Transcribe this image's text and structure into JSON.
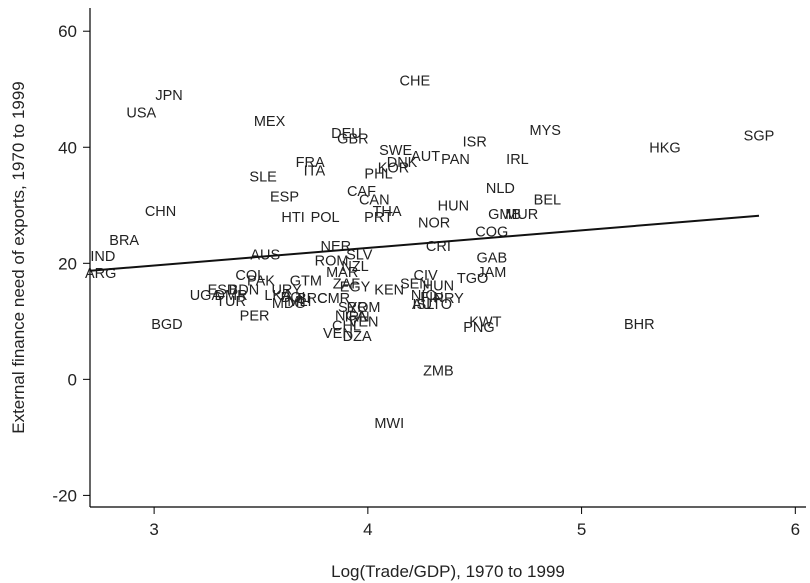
{
  "chart_data": {
    "type": "scatter",
    "title": "",
    "xlabel": "Log(Trade/GDP), 1970 to 1999",
    "ylabel": "External finance need of exports, 1970 to 1999",
    "xlim": [
      2.7,
      6.05
    ],
    "ylim": [
      -22,
      64
    ],
    "xticks": [
      3,
      4,
      5,
      6
    ],
    "yticks": [
      -20,
      0,
      20,
      40,
      60
    ],
    "grid": false,
    "marker": "country-code-label",
    "points": [
      {
        "label": "CHE",
        "x": 4.22,
        "y": 51.5
      },
      {
        "label": "JPN",
        "x": 3.07,
        "y": 49
      },
      {
        "label": "USA",
        "x": 2.94,
        "y": 46
      },
      {
        "label": "MEX",
        "x": 3.54,
        "y": 44.5
      },
      {
        "label": "MYS",
        "x": 4.83,
        "y": 43
      },
      {
        "label": "SGP",
        "x": 5.83,
        "y": 42
      },
      {
        "label": "DEU",
        "x": 3.9,
        "y": 42.5
      },
      {
        "label": "GBR",
        "x": 3.93,
        "y": 41.5
      },
      {
        "label": "ISR",
        "x": 4.5,
        "y": 41
      },
      {
        "label": "HKG",
        "x": 5.39,
        "y": 40
      },
      {
        "label": "SWE",
        "x": 4.13,
        "y": 39.5
      },
      {
        "label": "AUT",
        "x": 4.27,
        "y": 38.5
      },
      {
        "label": "PAN",
        "x": 4.41,
        "y": 38
      },
      {
        "label": "IRL",
        "x": 4.7,
        "y": 38
      },
      {
        "label": "DNK",
        "x": 4.16,
        "y": 37.5
      },
      {
        "label": "FRA",
        "x": 3.73,
        "y": 37.5
      },
      {
        "label": "KOR",
        "x": 4.12,
        "y": 36.5
      },
      {
        "label": "ITA",
        "x": 3.75,
        "y": 36
      },
      {
        "label": "PHL",
        "x": 4.05,
        "y": 35.5
      },
      {
        "label": "SLE",
        "x": 3.51,
        "y": 35
      },
      {
        "label": "NLD",
        "x": 4.62,
        "y": 33
      },
      {
        "label": "CAF",
        "x": 3.97,
        "y": 32.5
      },
      {
        "label": "ESP",
        "x": 3.61,
        "y": 31.5
      },
      {
        "label": "CAN",
        "x": 4.03,
        "y": 31
      },
      {
        "label": "BEL",
        "x": 4.84,
        "y": 31
      },
      {
        "label": "HUN",
        "x": 4.4,
        "y": 30
      },
      {
        "label": "THA",
        "x": 4.09,
        "y": 29
      },
      {
        "label": "CHN",
        "x": 3.03,
        "y": 29
      },
      {
        "label": "GMB",
        "x": 4.64,
        "y": 28.5
      },
      {
        "label": "MUR",
        "x": 4.72,
        "y": 28.5
      },
      {
        "label": "HTI",
        "x": 3.65,
        "y": 28
      },
      {
        "label": "POL",
        "x": 3.8,
        "y": 28
      },
      {
        "label": "PRT",
        "x": 4.05,
        "y": 28
      },
      {
        "label": "NOR",
        "x": 4.31,
        "y": 27
      },
      {
        "label": "COG",
        "x": 4.58,
        "y": 25.5
      },
      {
        "label": "BRA",
        "x": 2.86,
        "y": 24
      },
      {
        "label": "CRI",
        "x": 4.33,
        "y": 23
      },
      {
        "label": "NER",
        "x": 3.85,
        "y": 23
      },
      {
        "label": "AUS",
        "x": 3.52,
        "y": 21.5
      },
      {
        "label": "IND",
        "x": 2.76,
        "y": 21.3
      },
      {
        "label": "SLV",
        "x": 3.96,
        "y": 21.5
      },
      {
        "label": "GAB",
        "x": 4.58,
        "y": 21
      },
      {
        "label": "ROM",
        "x": 3.83,
        "y": 20.5
      },
      {
        "label": "NZL",
        "x": 3.94,
        "y": 19.5
      },
      {
        "label": "MAR",
        "x": 3.88,
        "y": 18.5
      },
      {
        "label": "JAM",
        "x": 4.58,
        "y": 18.5
      },
      {
        "label": "ARG",
        "x": 2.75,
        "y": 18.3
      },
      {
        "label": "CIV",
        "x": 4.27,
        "y": 18
      },
      {
        "label": "COL",
        "x": 3.45,
        "y": 18
      },
      {
        "label": "TGO",
        "x": 4.49,
        "y": 17.5
      },
      {
        "label": "GTM",
        "x": 3.71,
        "y": 17
      },
      {
        "label": "PAK",
        "x": 3.5,
        "y": 17
      },
      {
        "label": "SEN",
        "x": 4.22,
        "y": 16.5
      },
      {
        "label": "HUN",
        "x": 4.33,
        "y": 16.2
      },
      {
        "label": "ZAF",
        "x": 3.9,
        "y": 16.5
      },
      {
        "label": "EGY",
        "x": 3.94,
        "y": 16
      },
      {
        "label": "KEN",
        "x": 4.1,
        "y": 15.5
      },
      {
        "label": "ESD",
        "x": 3.32,
        "y": 15.5
      },
      {
        "label": "BDN",
        "x": 3.42,
        "y": 15.5
      },
      {
        "label": "URY",
        "x": 3.62,
        "y": 15.5
      },
      {
        "label": "NIC",
        "x": 4.26,
        "y": 14.5
      },
      {
        "label": "UGA",
        "x": 3.24,
        "y": 14.5
      },
      {
        "label": "DMR",
        "x": 3.36,
        "y": 14.5
      },
      {
        "label": "LKA",
        "x": 3.58,
        "y": 14.5
      },
      {
        "label": "BOL",
        "x": 3.66,
        "y": 14.2
      },
      {
        "label": "BRC",
        "x": 3.74,
        "y": 14
      },
      {
        "label": "CMR",
        "x": 3.84,
        "y": 14
      },
      {
        "label": "FIN",
        "x": 4.3,
        "y": 14.2
      },
      {
        "label": "PRY",
        "x": 4.38,
        "y": 14
      },
      {
        "label": "TUR",
        "x": 3.36,
        "y": 13.5
      },
      {
        "label": "MLI",
        "x": 3.68,
        "y": 13.5
      },
      {
        "label": "MDG",
        "x": 3.63,
        "y": 13.2
      },
      {
        "label": "ISL",
        "x": 4.26,
        "y": 13
      },
      {
        "label": "AUTO",
        "x": 4.3,
        "y": 13
      },
      {
        "label": "SYR",
        "x": 3.93,
        "y": 12.5
      },
      {
        "label": "ROM",
        "x": 3.98,
        "y": 12.5
      },
      {
        "label": "NGA",
        "x": 3.92,
        "y": 11
      },
      {
        "label": "IRN",
        "x": 3.95,
        "y": 10.8
      },
      {
        "label": "BGD",
        "x": 3.06,
        "y": 9.5
      },
      {
        "label": "PER",
        "x": 3.47,
        "y": 11
      },
      {
        "label": "KWT",
        "x": 4.55,
        "y": 10
      },
      {
        "label": "BHR",
        "x": 5.27,
        "y": 9.5
      },
      {
        "label": "CHL",
        "x": 3.9,
        "y": 9.3
      },
      {
        "label": "VEN",
        "x": 3.98,
        "y": 10
      },
      {
        "label": "PNG",
        "x": 4.52,
        "y": 9
      },
      {
        "label": "VEN",
        "x": 3.86,
        "y": 8
      },
      {
        "label": "DZA",
        "x": 3.95,
        "y": 7.5
      },
      {
        "label": "ZMB",
        "x": 4.33,
        "y": 1.5
      },
      {
        "label": "MWI",
        "x": 4.1,
        "y": -7.5
      }
    ],
    "series": [
      {
        "type": "line",
        "style": "fit",
        "x": [
          2.7,
          5.83
        ],
        "y": [
          18.7,
          28.2
        ]
      }
    ]
  }
}
